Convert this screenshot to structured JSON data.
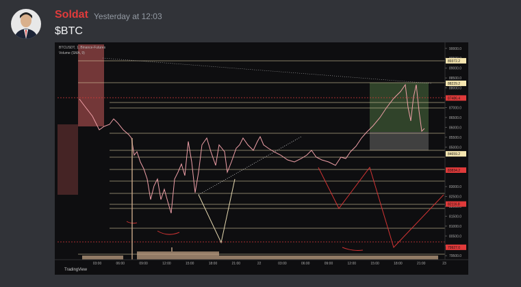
{
  "message": {
    "author": "Soldat",
    "timestamp": "Yesterday at 12:03",
    "content": "$BTC"
  },
  "chart_image": {
    "symbol_line": "BTCUSDT, 1, Binance-Futures",
    "volume_label": "Volume (SMA, 9)",
    "watermark": "TradingView",
    "ylim": [
      79300,
      90200
    ],
    "price_ticks": [
      {
        "value": 90000,
        "label": "90000.0"
      },
      {
        "value": 89500,
        "label": "89500.0"
      },
      {
        "value": 89000,
        "label": "89000.0"
      },
      {
        "value": 88500,
        "label": "88500.0"
      },
      {
        "value": 88000,
        "label": "88000.0"
      },
      {
        "value": 87000,
        "label": "87000.0"
      },
      {
        "value": 86500,
        "label": "86500.0"
      },
      {
        "value": 86000,
        "label": "86000.0"
      },
      {
        "value": 85500,
        "label": "85500.0"
      },
      {
        "value": 85000,
        "label": "85000.0"
      },
      {
        "value": 83000,
        "label": "83000.0"
      },
      {
        "value": 82500,
        "label": "82500.0"
      },
      {
        "value": 82000,
        "label": "82000.0"
      },
      {
        "value": 81500,
        "label": "81500.0"
      },
      {
        "value": 81000,
        "label": "81000.0"
      },
      {
        "value": 80500,
        "label": "80500.0"
      },
      {
        "value": 80000,
        "label": "80000.0"
      },
      {
        "value": 79500,
        "label": "79500.0"
      }
    ],
    "price_tags": [
      {
        "value": 89372.2,
        "label": "89372.2",
        "color": "#f5e6b0"
      },
      {
        "value": 88229.2,
        "label": "88229.2",
        "color": "#f5e6b0"
      },
      {
        "value": 87486.4,
        "label": "87486.4",
        "color": "#e03a3a"
      },
      {
        "value": 84659.2,
        "label": "84659.2",
        "color": "#f5e6b0"
      },
      {
        "value": 83834.2,
        "label": "83834.2",
        "color": "#e03a3a"
      },
      {
        "value": 82116.8,
        "label": "82116.8",
        "color": "#e03a3a"
      },
      {
        "value": 79927.0,
        "label": "79927.0",
        "color": "#e03a3a"
      }
    ],
    "time_labels": [
      "03:00",
      "06:00",
      "09:00",
      "12:00",
      "15:00",
      "18:00",
      "21:00",
      "22",
      "03:00",
      "06:00",
      "09:00",
      "12:00",
      "15:00",
      "18:00",
      "21:00",
      "23"
    ]
  }
}
